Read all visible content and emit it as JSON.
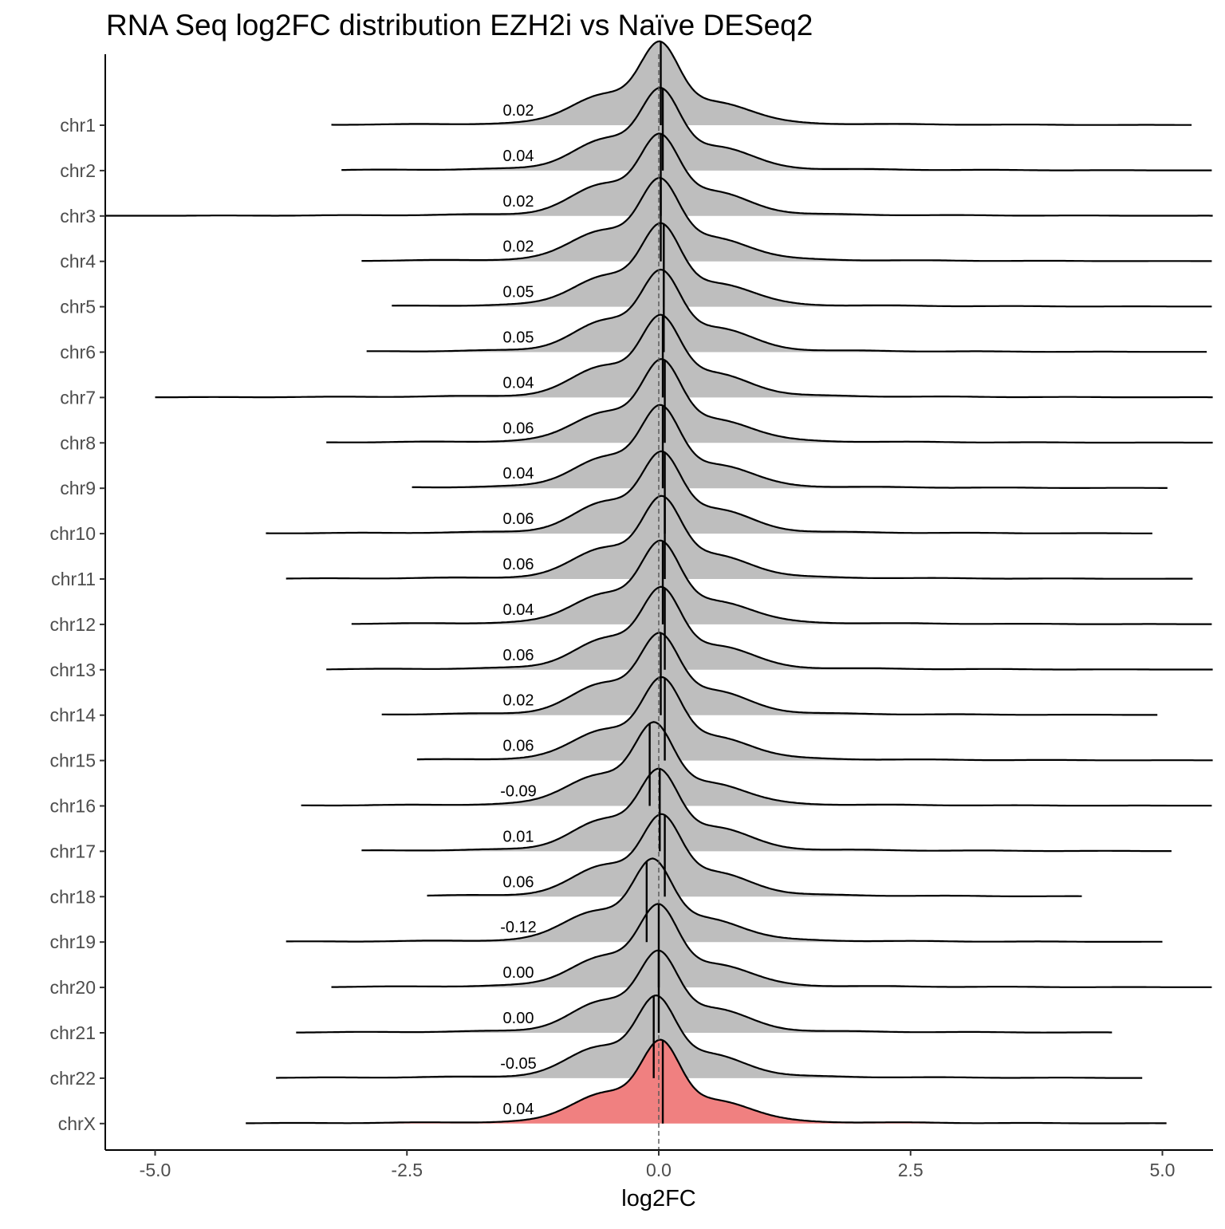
{
  "chart_data": {
    "type": "ridgeline",
    "title": "RNA Seq log2FC distribution EZH2i vs Naïve DESeq2",
    "xlabel": "log2FC",
    "ylabel": "",
    "xlim": [
      -5.5,
      5.5
    ],
    "x_ticks": [
      -5.0,
      -2.5,
      0.0,
      2.5,
      5.0
    ],
    "x_tick_labels": [
      "-5.0",
      "-2.5",
      "0.0",
      "2.5",
      "5.0"
    ],
    "reference_line_x": 0,
    "grid": false,
    "legend": "none",
    "colors": {
      "autosome_fill": "#bebebe",
      "highlight_fill": "#f08080",
      "outline": "#000000",
      "axis": "#000000",
      "tick_label": "#4d4d4d"
    },
    "categories": [
      "chr1",
      "chr2",
      "chr3",
      "chr4",
      "chr5",
      "chr6",
      "chr7",
      "chr8",
      "chr9",
      "chr10",
      "chr11",
      "chr12",
      "chr13",
      "chr14",
      "chr15",
      "chr16",
      "chr17",
      "chr18",
      "chr19",
      "chr20",
      "chr21",
      "chr22",
      "chrX"
    ],
    "series": [
      {
        "name": "chr1",
        "median": 0.02,
        "median_label": "0.02",
        "range": [
          -3.25,
          5.3
        ],
        "highlight": false
      },
      {
        "name": "chr2",
        "median": 0.04,
        "median_label": "0.04",
        "range": [
          -3.15,
          5.5
        ],
        "highlight": false
      },
      {
        "name": "chr3",
        "median": 0.02,
        "median_label": "0.02",
        "range": [
          -5.5,
          5.5
        ],
        "highlight": false
      },
      {
        "name": "chr4",
        "median": 0.02,
        "median_label": "0.02",
        "range": [
          -2.95,
          5.5
        ],
        "highlight": false
      },
      {
        "name": "chr5",
        "median": 0.05,
        "median_label": "0.05",
        "range": [
          -2.65,
          5.5
        ],
        "highlight": false
      },
      {
        "name": "chr6",
        "median": 0.05,
        "median_label": "0.05",
        "range": [
          -2.9,
          5.45
        ],
        "highlight": false
      },
      {
        "name": "chr7",
        "median": 0.04,
        "median_label": "0.04",
        "range": [
          -5.0,
          5.5
        ],
        "highlight": false
      },
      {
        "name": "chr8",
        "median": 0.06,
        "median_label": "0.06",
        "range": [
          -3.3,
          5.5
        ],
        "highlight": false
      },
      {
        "name": "chr9",
        "median": 0.04,
        "median_label": "0.04",
        "range": [
          -2.45,
          5.05
        ],
        "highlight": false
      },
      {
        "name": "chr10",
        "median": 0.06,
        "median_label": "0.06",
        "range": [
          -3.9,
          4.9
        ],
        "highlight": false
      },
      {
        "name": "chr11",
        "median": 0.06,
        "median_label": "0.06",
        "range": [
          -3.7,
          5.3
        ],
        "highlight": false
      },
      {
        "name": "chr12",
        "median": 0.04,
        "median_label": "0.04",
        "range": [
          -3.05,
          5.5
        ],
        "highlight": false
      },
      {
        "name": "chr13",
        "median": 0.06,
        "median_label": "0.06",
        "range": [
          -3.3,
          5.5
        ],
        "highlight": false
      },
      {
        "name": "chr14",
        "median": 0.02,
        "median_label": "0.02",
        "range": [
          -2.75,
          4.95
        ],
        "highlight": false
      },
      {
        "name": "chr15",
        "median": 0.06,
        "median_label": "0.06",
        "range": [
          -2.4,
          5.5
        ],
        "highlight": false
      },
      {
        "name": "chr16",
        "median": -0.09,
        "median_label": "-0.09",
        "range": [
          -3.55,
          5.5
        ],
        "highlight": false
      },
      {
        "name": "chr17",
        "median": 0.01,
        "median_label": "0.01",
        "range": [
          -2.95,
          5.1
        ],
        "highlight": false
      },
      {
        "name": "chr18",
        "median": 0.06,
        "median_label": "0.06",
        "range": [
          -2.3,
          4.2
        ],
        "highlight": false
      },
      {
        "name": "chr19",
        "median": -0.12,
        "median_label": "-0.12",
        "range": [
          -3.7,
          5.0
        ],
        "highlight": false
      },
      {
        "name": "chr20",
        "median": 0.0,
        "median_label": "0.00",
        "range": [
          -3.25,
          5.5
        ],
        "highlight": false
      },
      {
        "name": "chr21",
        "median": 0.0,
        "median_label": "0.00",
        "range": [
          -3.6,
          4.5
        ],
        "highlight": false
      },
      {
        "name": "chr22",
        "median": -0.05,
        "median_label": "-0.05",
        "range": [
          -3.8,
          4.8
        ],
        "highlight": false
      },
      {
        "name": "chrX",
        "median": 0.04,
        "median_label": "0.04",
        "range": [
          -4.1,
          5.05
        ],
        "highlight": true
      }
    ]
  }
}
